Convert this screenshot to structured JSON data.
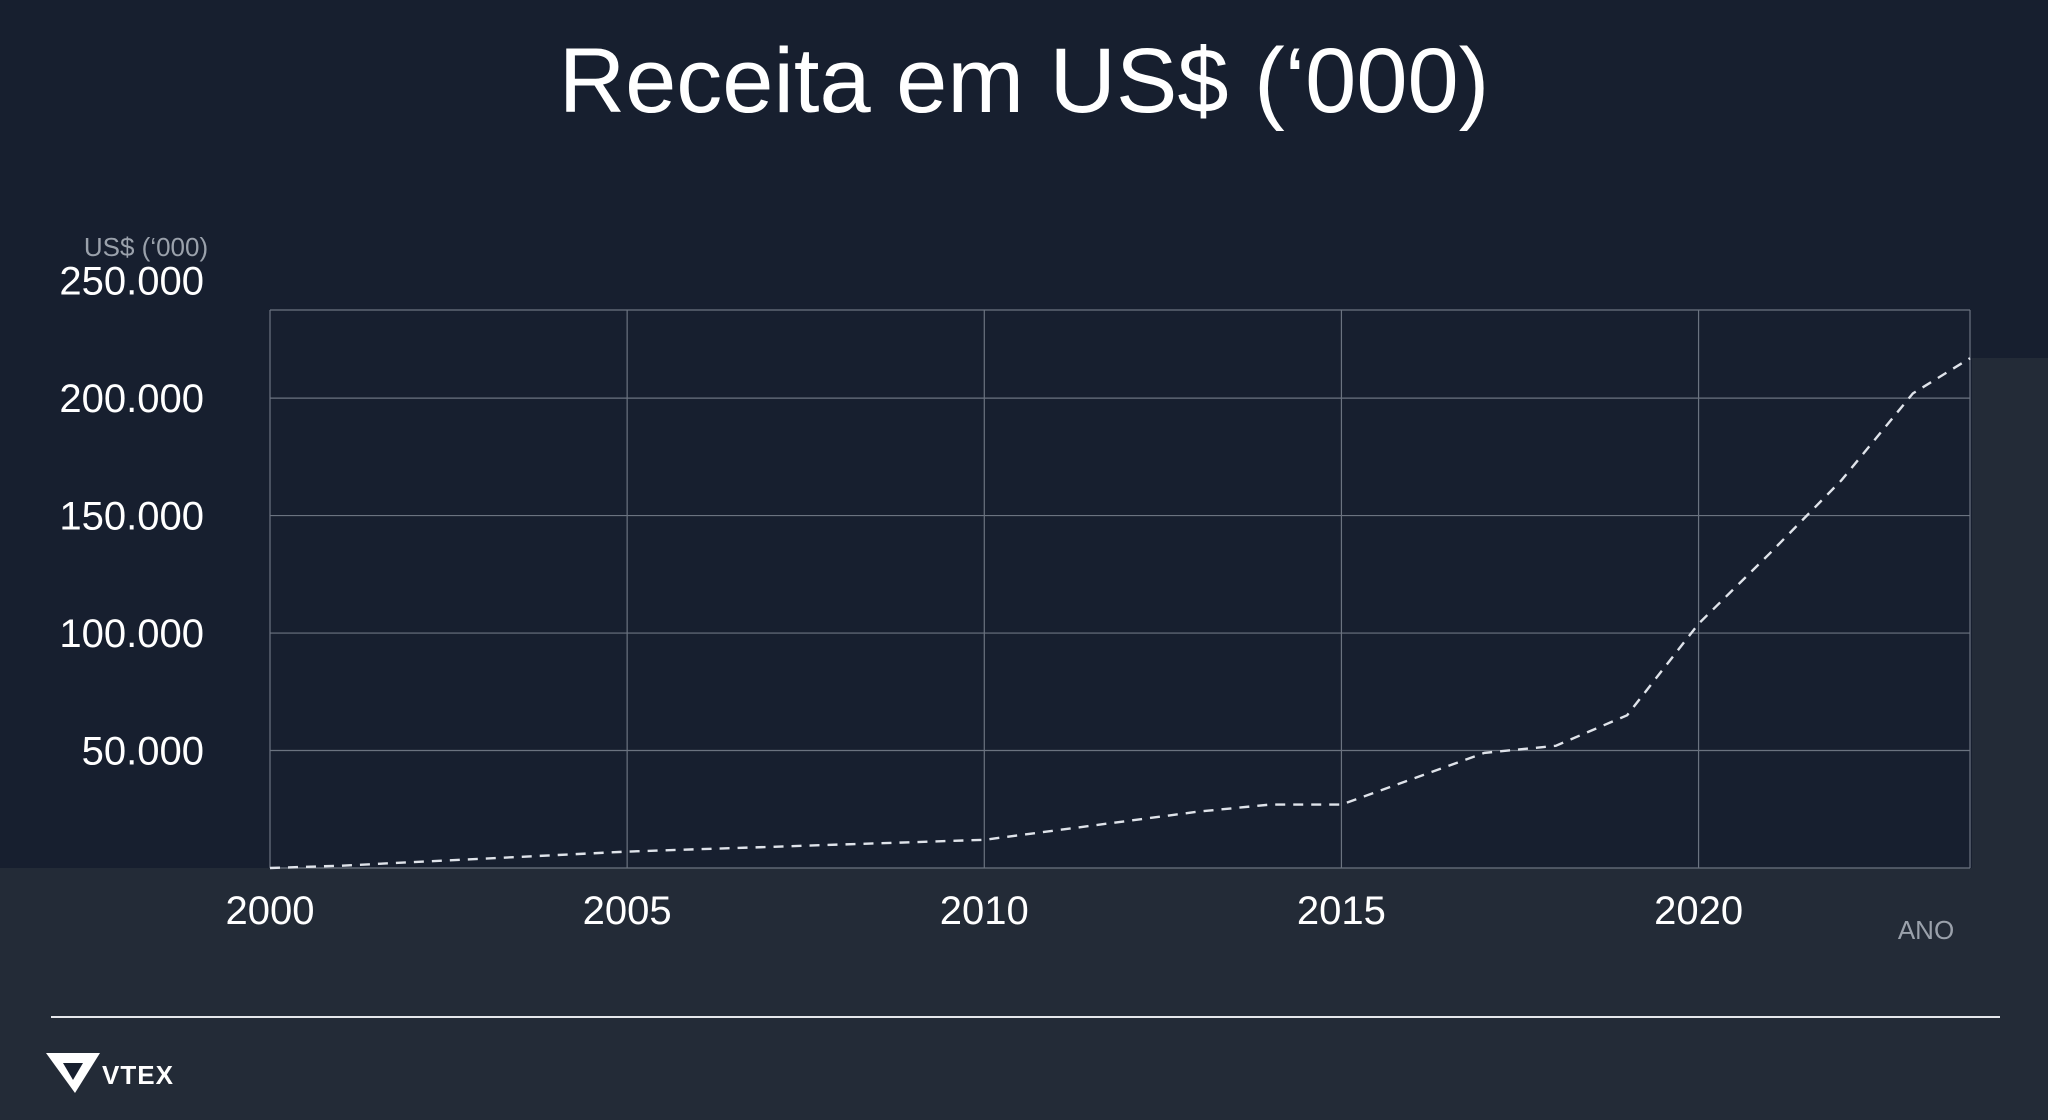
{
  "chart_data": {
    "type": "line",
    "title": "Receita em US$ (‘000)",
    "ylabel": "US$ (‘000)",
    "xlabel": "ANO",
    "xlim": [
      2000,
      2023.8
    ],
    "ylim": [
      0,
      237500
    ],
    "x_ticks": [
      2000,
      2005,
      2010,
      2015,
      2020
    ],
    "x_tick_labels": [
      "2000",
      "2005",
      "2010",
      "2015",
      "2020"
    ],
    "y_ticks": [
      50000,
      100000,
      150000,
      200000,
      250000
    ],
    "y_tick_labels": [
      "50.000",
      "100.000",
      "150.000",
      "200.000",
      "250.000"
    ],
    "grid": true,
    "series": [
      {
        "line_style": "dashed",
        "color": "#dfe3ea",
        "x": [
          2000,
          2001,
          2002,
          2003,
          2004,
          2005,
          2006,
          2007,
          2008,
          2009,
          2010,
          2011,
          2012,
          2013,
          2014,
          2015,
          2016,
          2017,
          2018,
          2019,
          2020,
          2021,
          2022,
          2023,
          2023.8
        ],
        "y": [
          0,
          1000,
          2500,
          4000,
          5500,
          7000,
          8000,
          9000,
          10000,
          11000,
          12000,
          16000,
          20000,
          24000,
          27000,
          27000,
          38000,
          49000,
          52000,
          65000,
          104000,
          134000,
          165000,
          202000,
          217000
        ]
      }
    ]
  },
  "brand": {
    "logo_text": "VTEX"
  },
  "colors": {
    "background_dark": "#171f2f",
    "background_mid": "#232b37",
    "grid": "#6b7380",
    "text": "#ffffff",
    "muted_text": "#9aa1ab"
  }
}
